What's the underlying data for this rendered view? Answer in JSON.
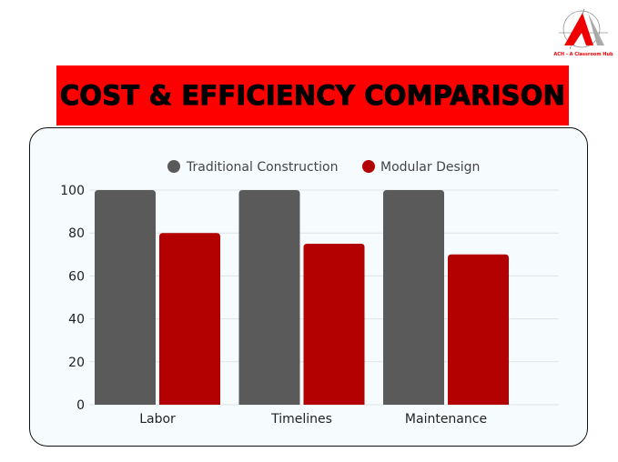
{
  "logo": {
    "text": "ACH - A Classroom Hub"
  },
  "title": "COST & EFFICIENCY COMPARISON",
  "colors": {
    "banner": "#ff0000",
    "traditional": "#5a5a5a",
    "modular": "#b30000"
  },
  "chart_data": {
    "type": "bar",
    "categories": [
      "Labor",
      "Timelines",
      "Maintenance"
    ],
    "series": [
      {
        "name": "Traditional Construction",
        "values": [
          100,
          100,
          100
        ],
        "color": "#5a5a5a"
      },
      {
        "name": "Modular Design",
        "values": [
          80,
          75,
          70
        ],
        "color": "#b30000"
      }
    ],
    "yticks": [
      0,
      20,
      40,
      60,
      80,
      100
    ],
    "ylim": [
      0,
      100
    ],
    "grid": true,
    "legend": "top-center"
  }
}
